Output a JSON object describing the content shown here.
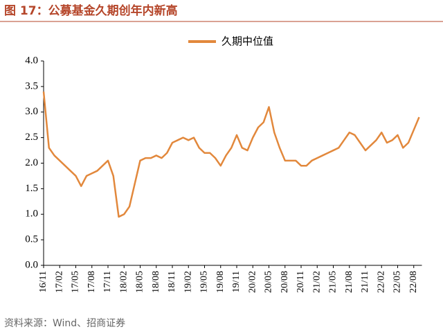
{
  "chart_data": {
    "type": "line",
    "title": "图 17：公募基金久期创年内新高",
    "source": "资料来源：Wind、招商证券",
    "categories": [
      "16/11",
      null,
      null,
      "17/02",
      null,
      null,
      "17/05",
      null,
      null,
      "17/08",
      null,
      null,
      "17/11",
      null,
      null,
      "18/02",
      null,
      null,
      "18/05",
      null,
      null,
      "18/08",
      null,
      null,
      "18/11",
      null,
      null,
      "19/02",
      null,
      null,
      "19/05",
      null,
      null,
      "19/08",
      null,
      null,
      "19/11",
      null,
      null,
      "20/02",
      null,
      null,
      "20/05",
      null,
      null,
      "20/08",
      null,
      null,
      "20/11",
      null,
      null,
      "21/02",
      null,
      null,
      "21/05",
      null,
      null,
      "21/08",
      null,
      null,
      "21/11",
      null,
      null,
      "22/02",
      null,
      null,
      "22/05",
      null,
      null,
      "22/08",
      null
    ],
    "series": [
      {
        "name": "久期中位值",
        "color": "#e2883c",
        "values": [
          3.4,
          2.3,
          2.15,
          2.05,
          1.95,
          1.85,
          1.75,
          1.55,
          1.75,
          1.8,
          1.85,
          1.95,
          2.05,
          1.75,
          0.95,
          1.0,
          1.15,
          1.6,
          2.05,
          2.1,
          2.1,
          2.15,
          2.1,
          2.2,
          2.4,
          2.45,
          2.5,
          2.45,
          2.5,
          2.3,
          2.2,
          2.2,
          2.1,
          1.95,
          2.15,
          2.3,
          2.55,
          2.3,
          2.25,
          2.5,
          2.7,
          2.8,
          3.1,
          2.6,
          2.3,
          2.05,
          2.05,
          2.05,
          1.95,
          1.95,
          2.05,
          2.1,
          2.15,
          2.2,
          2.25,
          2.3,
          2.45,
          2.6,
          2.55,
          2.4,
          2.25,
          2.35,
          2.45,
          2.6,
          2.4,
          2.45,
          2.55,
          2.3,
          2.4,
          2.65,
          2.9
        ]
      }
    ],
    "ylim": [
      0,
      4
    ],
    "yticks": [
      {
        "value": 0,
        "label": "0.0"
      },
      0.5,
      {
        "value": 1,
        "label": "1.0"
      },
      1.5,
      {
        "value": 2,
        "label": "2.0"
      },
      2.5,
      {
        "value": 3,
        "label": "3.0"
      },
      3.5,
      {
        "value": 4,
        "label": "4.0"
      }
    ],
    "legend": "top"
  }
}
